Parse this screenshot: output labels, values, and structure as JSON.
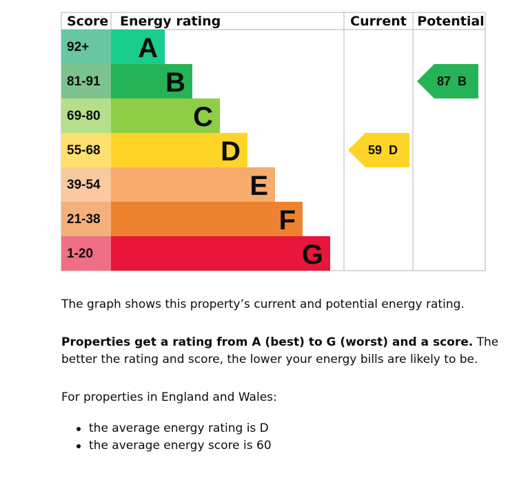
{
  "chart_data": {
    "type": "bar",
    "headers": {
      "score": "Score",
      "rating": "Energy rating",
      "current": "Current",
      "potential": "Potential"
    },
    "bands": [
      {
        "score": "92+",
        "letter": "A",
        "color": "#19cd8c",
        "band_color": "#69c6a3"
      },
      {
        "score": "81-91",
        "letter": "B",
        "color": "#26b357",
        "band_color": "#7dc38d"
      },
      {
        "score": "69-80",
        "letter": "C",
        "color": "#8dce46",
        "band_color": "#b5df8a"
      },
      {
        "score": "55-68",
        "letter": "D",
        "color": "#ffd429",
        "band_color": "#ffe06d"
      },
      {
        "score": "39-54",
        "letter": "E",
        "color": "#f7ab6c",
        "band_color": "#f9c9a0"
      },
      {
        "score": "21-38",
        "letter": "F",
        "color": "#ed8331",
        "band_color": "#f3b07c"
      },
      {
        "score": "1-20",
        "letter": "G",
        "color": "#e9153b",
        "band_color": "#ef7086"
      }
    ],
    "current": {
      "score": 59,
      "letter": "D",
      "label": "59  D",
      "color": "#ffd429"
    },
    "potential": {
      "score": 87,
      "letter": "B",
      "label": "87  B",
      "color": "#26b357"
    }
  },
  "text": {
    "p1": "The graph shows this property’s current and potential energy rating.",
    "p2_bold": "Properties get a rating from A (best) to G (worst) and a score.",
    "p2_rest": " The better the rating and score, the lower your energy bills are likely to be.",
    "p3": "For properties in England and Wales:",
    "bullets": [
      "the average energy rating is D",
      "the average energy score is 60"
    ]
  }
}
